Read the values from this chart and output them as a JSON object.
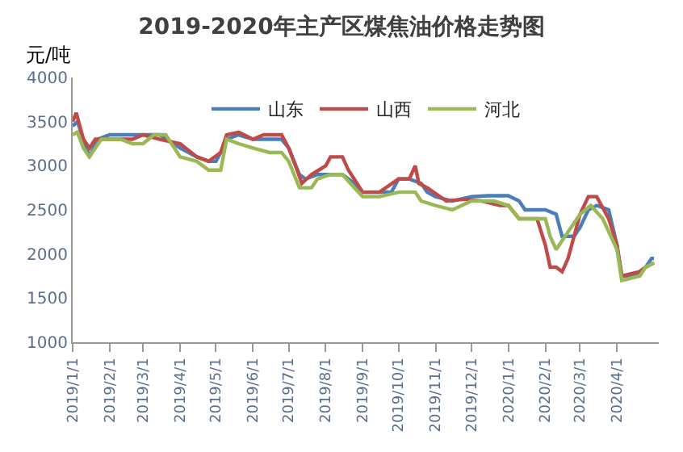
{
  "chart_data": {
    "type": "line",
    "title": "2019-2020年主产区煤焦油价格走势图",
    "ylabel": "元/吨",
    "xlim": [
      "2019-01-01",
      "2020-05-06"
    ],
    "xticks": [
      {
        "value": "2019-01-01",
        "label": "2019/1/1"
      },
      {
        "value": "2019-02-01",
        "label": "2019/2/1"
      },
      {
        "value": "2019-03-01",
        "label": "2019/3/1"
      },
      {
        "value": "2019-04-01",
        "label": "2019/4/1"
      },
      {
        "value": "2019-05-01",
        "label": "2019/5/1"
      },
      {
        "value": "2019-06-01",
        "label": "2019/6/1"
      },
      {
        "value": "2019-07-01",
        "label": "2019/7/1"
      },
      {
        "value": "2019-08-01",
        "label": "2019/8/1"
      },
      {
        "value": "2019-09-01",
        "label": "2019/9/1"
      },
      {
        "value": "2019-10-01",
        "label": "2019/10/1"
      },
      {
        "value": "2019-11-01",
        "label": "2019/11/1"
      },
      {
        "value": "2019-12-01",
        "label": "2019/12/1"
      },
      {
        "value": "2020-01-01",
        "label": "2020/1/1"
      },
      {
        "value": "2020-02-01",
        "label": "2020/2/1"
      },
      {
        "value": "2020-03-01",
        "label": "2020/3/1"
      },
      {
        "value": "2020-04-01",
        "label": "2020/4/1"
      }
    ],
    "ylim": [
      1000,
      4000
    ],
    "yticks": [
      1000,
      1500,
      2000,
      2500,
      3000,
      3500,
      4000
    ],
    "legend": "top",
    "marker": "none",
    "line_style": "solid",
    "series": [
      {
        "name": "山东",
        "color": "#4a7ebb",
        "x": [
          "2019-01-01",
          "2019-01-05",
          "2019-01-10",
          "2019-01-15",
          "2019-01-22",
          "2019-02-01",
          "2019-02-20",
          "2019-03-01",
          "2019-03-15",
          "2019-04-01",
          "2019-04-15",
          "2019-04-25",
          "2019-05-01",
          "2019-05-05",
          "2019-05-10",
          "2019-05-20",
          "2019-06-01",
          "2019-06-15",
          "2019-06-25",
          "2019-07-01",
          "2019-07-10",
          "2019-07-15",
          "2019-07-25",
          "2019-08-01",
          "2019-08-15",
          "2019-08-25",
          "2019-09-01",
          "2019-09-15",
          "2019-09-25",
          "2019-10-01",
          "2019-10-10",
          "2019-10-20",
          "2019-10-25",
          "2019-11-01",
          "2019-11-15",
          "2019-12-01",
          "2019-12-15",
          "2020-01-01",
          "2020-01-10",
          "2020-01-15",
          "2020-02-01",
          "2020-02-10",
          "2020-02-15",
          "2020-02-25",
          "2020-03-01",
          "2020-03-08",
          "2020-03-15",
          "2020-03-25",
          "2020-04-01",
          "2020-04-05",
          "2020-04-15",
          "2020-04-25",
          "2020-04-30",
          "2020-05-02"
        ],
        "values": [
          3450,
          3500,
          3300,
          3100,
          3300,
          3350,
          3350,
          3350,
          3350,
          3200,
          3100,
          3050,
          3050,
          3150,
          3300,
          3350,
          3300,
          3300,
          3300,
          3200,
          2900,
          2850,
          2900,
          2900,
          2900,
          2800,
          2700,
          2700,
          2700,
          2850,
          2850,
          2800,
          2700,
          2650,
          2600,
          2650,
          2660,
          2660,
          2600,
          2500,
          2500,
          2450,
          2200,
          2200,
          2300,
          2500,
          2550,
          2500,
          2100,
          1750,
          1750,
          1850,
          1950,
          1950
        ]
      },
      {
        "name": "山西",
        "color": "#be4b48",
        "x": [
          "2019-01-01",
          "2019-01-04",
          "2019-01-10",
          "2019-01-15",
          "2019-01-20",
          "2019-02-01",
          "2019-02-20",
          "2019-03-01",
          "2019-03-15",
          "2019-04-01",
          "2019-04-15",
          "2019-04-25",
          "2019-05-05",
          "2019-05-10",
          "2019-05-20",
          "2019-06-01",
          "2019-06-10",
          "2019-06-25",
          "2019-07-01",
          "2019-07-08",
          "2019-07-12",
          "2019-07-20",
          "2019-08-01",
          "2019-08-05",
          "2019-08-15",
          "2019-08-20",
          "2019-09-01",
          "2019-09-15",
          "2019-10-01",
          "2019-10-10",
          "2019-10-15",
          "2019-10-18",
          "2019-10-25",
          "2019-11-10",
          "2019-11-25",
          "2019-12-10",
          "2019-12-25",
          "2020-01-01",
          "2020-01-10",
          "2020-01-25",
          "2020-02-01",
          "2020-02-05",
          "2020-02-10",
          "2020-02-15",
          "2020-02-20",
          "2020-03-01",
          "2020-03-08",
          "2020-03-15",
          "2020-03-25",
          "2020-04-01",
          "2020-04-05",
          "2020-04-20",
          "2020-04-25",
          "2020-05-02"
        ],
        "values": [
          3500,
          3600,
          3300,
          3200,
          3300,
          3300,
          3300,
          3350,
          3300,
          3250,
          3100,
          3050,
          3150,
          3350,
          3380,
          3300,
          3350,
          3350,
          3200,
          2950,
          2800,
          2900,
          3000,
          3100,
          3100,
          2950,
          2700,
          2700,
          2850,
          2850,
          3000,
          2800,
          2750,
          2600,
          2620,
          2600,
          2550,
          2550,
          2400,
          2400,
          2100,
          1850,
          1850,
          1800,
          1950,
          2450,
          2650,
          2650,
          2400,
          2100,
          1750,
          1800,
          1850,
          1900
        ]
      },
      {
        "name": "河北",
        "color": "#98b954",
        "x": [
          "2019-01-01",
          "2019-01-05",
          "2019-01-10",
          "2019-01-15",
          "2019-01-25",
          "2019-02-10",
          "2019-02-20",
          "2019-03-01",
          "2019-03-10",
          "2019-03-20",
          "2019-04-01",
          "2019-04-15",
          "2019-04-25",
          "2019-05-05",
          "2019-05-10",
          "2019-05-20",
          "2019-06-01",
          "2019-06-15",
          "2019-06-25",
          "2019-07-01",
          "2019-07-10",
          "2019-07-20",
          "2019-07-25",
          "2019-08-05",
          "2019-08-15",
          "2019-08-25",
          "2019-09-01",
          "2019-09-15",
          "2019-10-01",
          "2019-10-15",
          "2019-10-20",
          "2019-11-01",
          "2019-11-15",
          "2019-12-01",
          "2019-12-20",
          "2020-01-01",
          "2020-01-10",
          "2020-02-01",
          "2020-02-05",
          "2020-02-10",
          "2020-02-15",
          "2020-03-01",
          "2020-03-10",
          "2020-03-20",
          "2020-04-01",
          "2020-04-05",
          "2020-04-20",
          "2020-04-25",
          "2020-05-02"
        ],
        "values": [
          3350,
          3380,
          3200,
          3100,
          3300,
          3300,
          3250,
          3250,
          3350,
          3350,
          3100,
          3050,
          2950,
          2950,
          3300,
          3250,
          3200,
          3150,
          3150,
          3050,
          2750,
          2750,
          2850,
          2900,
          2900,
          2750,
          2650,
          2650,
          2700,
          2700,
          2600,
          2550,
          2500,
          2600,
          2600,
          2550,
          2400,
          2400,
          2200,
          2050,
          2150,
          2450,
          2550,
          2400,
          2050,
          1700,
          1750,
          1850,
          1900
        ]
      }
    ]
  }
}
